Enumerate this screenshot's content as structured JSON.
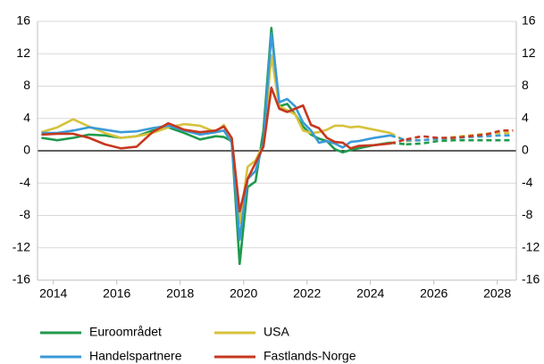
{
  "chart_data": {
    "type": "line",
    "x": [
      2013.625,
      2014.125,
      2014.625,
      2015.125,
      2015.625,
      2016.125,
      2016.625,
      2017.125,
      2017.625,
      2018.125,
      2018.625,
      2019.125,
      2019.375,
      2019.625,
      2019.875,
      2020.125,
      2020.375,
      2020.625,
      2020.875,
      2021.125,
      2021.375,
      2021.625,
      2021.875,
      2022.125,
      2022.375,
      2022.625,
      2022.875,
      2023.125,
      2023.375,
      2023.625,
      2024.125,
      2024.625,
      2025.125,
      2025.625,
      2026.125,
      2026.625,
      2027.125,
      2027.625,
      2028.125,
      2028.5
    ],
    "series": [
      {
        "name": "Euroområdet",
        "color": "#1f9a4c",
        "values": [
          1.6,
          1.3,
          1.6,
          2.0,
          1.9,
          1.6,
          1.8,
          2.5,
          2.9,
          2.2,
          1.4,
          1.8,
          1.7,
          1.2,
          -14,
          -4.5,
          -3.8,
          2.5,
          15.2,
          5.5,
          5.8,
          4.5,
          3.0,
          2.0,
          1.5,
          1.2,
          0.2,
          -0.2,
          0.1,
          0.3,
          0.7,
          1.0,
          0.8,
          0.9,
          1.2,
          1.3,
          1.3,
          1.3,
          1.3,
          1.3
        ]
      },
      {
        "name": "USA",
        "color": "#d6c23c",
        "values": [
          2.3,
          2.9,
          3.9,
          3.0,
          2.2,
          1.6,
          1.8,
          2.2,
          2.9,
          3.3,
          3.1,
          2.3,
          3.2,
          1.5,
          -9,
          -2,
          -1.2,
          0.8,
          11.8,
          5.5,
          5.0,
          4.5,
          2.5,
          2.2,
          2.3,
          2.6,
          3.1,
          3.1,
          2.9,
          3.0,
          2.6,
          2.2,
          1.2,
          1.3,
          1.5,
          1.7,
          1.9,
          2.1,
          2.2,
          2.2
        ]
      },
      {
        "name": "Handelspartnere",
        "color": "#3a9ad8",
        "values": [
          2.2,
          2.2,
          2.5,
          2.9,
          2.6,
          2.3,
          2.4,
          2.8,
          3.1,
          2.5,
          2.0,
          2.3,
          2.5,
          1.0,
          -11,
          -3.5,
          -2.5,
          1.0,
          14.5,
          6.0,
          6.4,
          5.5,
          3.5,
          2.5,
          1.0,
          1.2,
          0.9,
          0.4,
          1.1,
          1.2,
          1.6,
          1.9,
          1.3,
          1.3,
          1.5,
          1.6,
          1.7,
          1.8,
          1.9,
          1.9
        ]
      },
      {
        "name": "Fastlands-Norge",
        "color": "#c6381f",
        "values": [
          2.0,
          2.1,
          2.1,
          1.6,
          0.8,
          0.3,
          0.5,
          2.3,
          3.4,
          2.6,
          2.3,
          2.5,
          3.0,
          1.6,
          -7.5,
          -3.5,
          -1.5,
          0.5,
          7.8,
          5.2,
          4.8,
          5.2,
          5.6,
          3.2,
          2.8,
          1.6,
          1.1,
          1.0,
          0.3,
          0.6,
          0.7,
          0.9,
          1.4,
          1.8,
          1.6,
          1.6,
          1.8,
          2.0,
          2.5,
          2.5
        ]
      }
    ],
    "dashed_from": 2024.625,
    "xlim": [
      2013.5,
      2028.6
    ],
    "xticks": [
      2014,
      2016,
      2018,
      2020,
      2022,
      2024,
      2026,
      2028
    ],
    "ylim": [
      -16,
      16
    ],
    "yticks": [
      -16,
      -12,
      -8,
      -4,
      0,
      4,
      8,
      12,
      16
    ],
    "y2lim": [
      -16,
      16
    ],
    "y2ticks": [
      -16,
      -12,
      -8,
      -4,
      0,
      4,
      8,
      12,
      16
    ],
    "grid": true
  }
}
